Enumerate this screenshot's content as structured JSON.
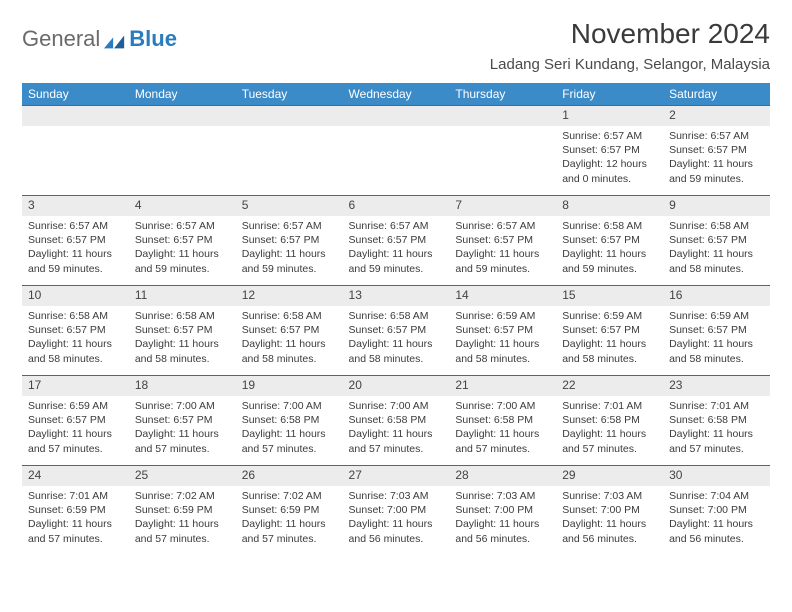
{
  "brand": {
    "part1": "General",
    "part2": "Blue"
  },
  "title": "November 2024",
  "location": "Ladang Seri Kundang, Selangor, Malaysia",
  "colors": {
    "header_bg": "#3b8bc9",
    "header_text": "#ffffff",
    "daynum_bg": "#ececec",
    "daynum_border": "#2f6fa3",
    "body_text": "#3b3b3b",
    "brand_gray": "#6a6a6a",
    "brand_blue": "#2b7bbf"
  },
  "weekdays": [
    "Sunday",
    "Monday",
    "Tuesday",
    "Wednesday",
    "Thursday",
    "Friday",
    "Saturday"
  ],
  "weeks": [
    [
      null,
      null,
      null,
      null,
      null,
      {
        "n": "1",
        "sr": "Sunrise: 6:57 AM",
        "ss": "Sunset: 6:57 PM",
        "dl": "Daylight: 12 hours and 0 minutes."
      },
      {
        "n": "2",
        "sr": "Sunrise: 6:57 AM",
        "ss": "Sunset: 6:57 PM",
        "dl": "Daylight: 11 hours and 59 minutes."
      }
    ],
    [
      {
        "n": "3",
        "sr": "Sunrise: 6:57 AM",
        "ss": "Sunset: 6:57 PM",
        "dl": "Daylight: 11 hours and 59 minutes."
      },
      {
        "n": "4",
        "sr": "Sunrise: 6:57 AM",
        "ss": "Sunset: 6:57 PM",
        "dl": "Daylight: 11 hours and 59 minutes."
      },
      {
        "n": "5",
        "sr": "Sunrise: 6:57 AM",
        "ss": "Sunset: 6:57 PM",
        "dl": "Daylight: 11 hours and 59 minutes."
      },
      {
        "n": "6",
        "sr": "Sunrise: 6:57 AM",
        "ss": "Sunset: 6:57 PM",
        "dl": "Daylight: 11 hours and 59 minutes."
      },
      {
        "n": "7",
        "sr": "Sunrise: 6:57 AM",
        "ss": "Sunset: 6:57 PM",
        "dl": "Daylight: 11 hours and 59 minutes."
      },
      {
        "n": "8",
        "sr": "Sunrise: 6:58 AM",
        "ss": "Sunset: 6:57 PM",
        "dl": "Daylight: 11 hours and 59 minutes."
      },
      {
        "n": "9",
        "sr": "Sunrise: 6:58 AM",
        "ss": "Sunset: 6:57 PM",
        "dl": "Daylight: 11 hours and 58 minutes."
      }
    ],
    [
      {
        "n": "10",
        "sr": "Sunrise: 6:58 AM",
        "ss": "Sunset: 6:57 PM",
        "dl": "Daylight: 11 hours and 58 minutes."
      },
      {
        "n": "11",
        "sr": "Sunrise: 6:58 AM",
        "ss": "Sunset: 6:57 PM",
        "dl": "Daylight: 11 hours and 58 minutes."
      },
      {
        "n": "12",
        "sr": "Sunrise: 6:58 AM",
        "ss": "Sunset: 6:57 PM",
        "dl": "Daylight: 11 hours and 58 minutes."
      },
      {
        "n": "13",
        "sr": "Sunrise: 6:58 AM",
        "ss": "Sunset: 6:57 PM",
        "dl": "Daylight: 11 hours and 58 minutes."
      },
      {
        "n": "14",
        "sr": "Sunrise: 6:59 AM",
        "ss": "Sunset: 6:57 PM",
        "dl": "Daylight: 11 hours and 58 minutes."
      },
      {
        "n": "15",
        "sr": "Sunrise: 6:59 AM",
        "ss": "Sunset: 6:57 PM",
        "dl": "Daylight: 11 hours and 58 minutes."
      },
      {
        "n": "16",
        "sr": "Sunrise: 6:59 AM",
        "ss": "Sunset: 6:57 PM",
        "dl": "Daylight: 11 hours and 58 minutes."
      }
    ],
    [
      {
        "n": "17",
        "sr": "Sunrise: 6:59 AM",
        "ss": "Sunset: 6:57 PM",
        "dl": "Daylight: 11 hours and 57 minutes."
      },
      {
        "n": "18",
        "sr": "Sunrise: 7:00 AM",
        "ss": "Sunset: 6:57 PM",
        "dl": "Daylight: 11 hours and 57 minutes."
      },
      {
        "n": "19",
        "sr": "Sunrise: 7:00 AM",
        "ss": "Sunset: 6:58 PM",
        "dl": "Daylight: 11 hours and 57 minutes."
      },
      {
        "n": "20",
        "sr": "Sunrise: 7:00 AM",
        "ss": "Sunset: 6:58 PM",
        "dl": "Daylight: 11 hours and 57 minutes."
      },
      {
        "n": "21",
        "sr": "Sunrise: 7:00 AM",
        "ss": "Sunset: 6:58 PM",
        "dl": "Daylight: 11 hours and 57 minutes."
      },
      {
        "n": "22",
        "sr": "Sunrise: 7:01 AM",
        "ss": "Sunset: 6:58 PM",
        "dl": "Daylight: 11 hours and 57 minutes."
      },
      {
        "n": "23",
        "sr": "Sunrise: 7:01 AM",
        "ss": "Sunset: 6:58 PM",
        "dl": "Daylight: 11 hours and 57 minutes."
      }
    ],
    [
      {
        "n": "24",
        "sr": "Sunrise: 7:01 AM",
        "ss": "Sunset: 6:59 PM",
        "dl": "Daylight: 11 hours and 57 minutes."
      },
      {
        "n": "25",
        "sr": "Sunrise: 7:02 AM",
        "ss": "Sunset: 6:59 PM",
        "dl": "Daylight: 11 hours and 57 minutes."
      },
      {
        "n": "26",
        "sr": "Sunrise: 7:02 AM",
        "ss": "Sunset: 6:59 PM",
        "dl": "Daylight: 11 hours and 57 minutes."
      },
      {
        "n": "27",
        "sr": "Sunrise: 7:03 AM",
        "ss": "Sunset: 7:00 PM",
        "dl": "Daylight: 11 hours and 56 minutes."
      },
      {
        "n": "28",
        "sr": "Sunrise: 7:03 AM",
        "ss": "Sunset: 7:00 PM",
        "dl": "Daylight: 11 hours and 56 minutes."
      },
      {
        "n": "29",
        "sr": "Sunrise: 7:03 AM",
        "ss": "Sunset: 7:00 PM",
        "dl": "Daylight: 11 hours and 56 minutes."
      },
      {
        "n": "30",
        "sr": "Sunrise: 7:04 AM",
        "ss": "Sunset: 7:00 PM",
        "dl": "Daylight: 11 hours and 56 minutes."
      }
    ]
  ]
}
